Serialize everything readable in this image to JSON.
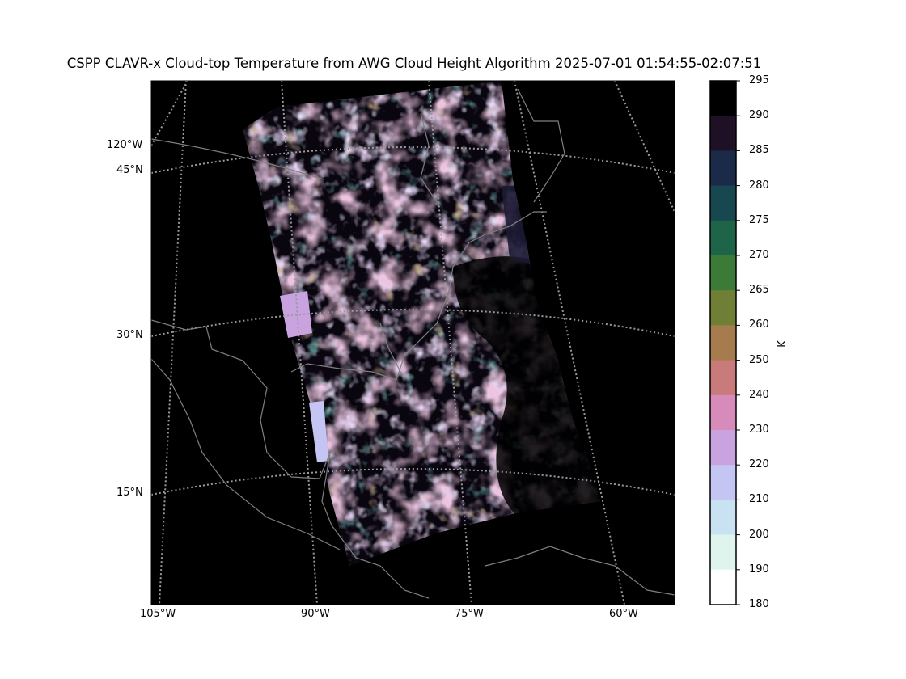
{
  "title": "CSPP CLAVR-x Cloud-top Temperature from AWG Cloud Height Algorithm 2025-07-01 01:54:55-02:07:51",
  "map": {
    "lat_labels": [
      "120°W",
      "45°N",
      "30°N",
      "15°N"
    ],
    "lon_labels": [
      "105°W",
      "90°W",
      "75°W",
      "60°W"
    ],
    "background_color": "#000000",
    "coastline_color": "#808080",
    "gridline_color": "#9a9a9a",
    "gridline_style": "dotted"
  },
  "colorbar": {
    "unit": "K",
    "ticks": [
      "295",
      "290",
      "285",
      "280",
      "275",
      "270",
      "265",
      "260",
      "250",
      "240",
      "230",
      "220",
      "210",
      "200",
      "190",
      "180"
    ],
    "colors": [
      "#000000",
      "#1e1025",
      "#1c2a4a",
      "#17484f",
      "#1d6449",
      "#3c7a38",
      "#6f7f36",
      "#a67c4e",
      "#c97b7c",
      "#d68bbb",
      "#c9a2e0",
      "#c4c5f3",
      "#c9e2f2",
      "#e0f4ee",
      "#ffffff"
    ]
  }
}
